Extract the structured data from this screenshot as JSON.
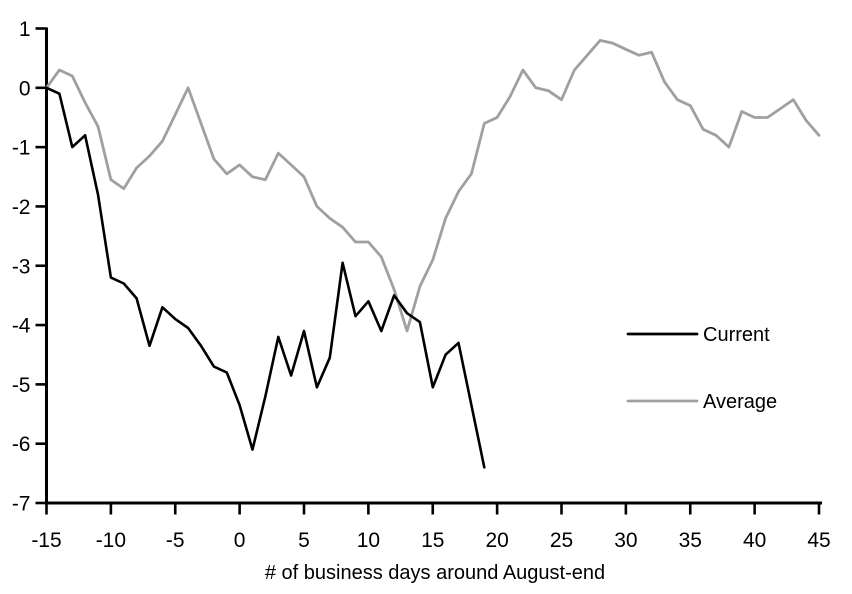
{
  "chart_data": {
    "type": "line",
    "title": "",
    "xlabel": "# of business days around August-end",
    "ylabel": "",
    "xlim": [
      -15,
      45
    ],
    "ylim": [
      -7,
      1
    ],
    "x_ticks": [
      -15,
      -10,
      -5,
      0,
      5,
      10,
      15,
      20,
      25,
      30,
      35,
      40,
      45
    ],
    "y_ticks": [
      1,
      0,
      -1,
      -2,
      -3,
      -4,
      -5,
      -6,
      -7
    ],
    "grid": false,
    "legend_position": "right-middle",
    "axis_color": "#000000",
    "series": [
      {
        "name": "Current",
        "color": "#000000",
        "width": 2.6,
        "x": [
          -15,
          -14,
          -13,
          -12,
          -11,
          -10,
          -9,
          -8,
          -7,
          -6,
          -5,
          -4,
          -3,
          -2,
          -1,
          0,
          1,
          2,
          3,
          4,
          5,
          6,
          7,
          8,
          9,
          10,
          11,
          12,
          13,
          14,
          15,
          16,
          17,
          18,
          19
        ],
        "values": [
          0,
          -0.1,
          -1.0,
          -0.8,
          -1.8,
          -3.2,
          -3.3,
          -3.55,
          -4.35,
          -3.7,
          -3.9,
          -4.05,
          -4.35,
          -4.7,
          -4.8,
          -5.35,
          -6.1,
          -5.2,
          -4.2,
          -4.85,
          -4.1,
          -5.05,
          -4.55,
          -2.95,
          -3.85,
          -3.6,
          -4.1,
          -3.5,
          -3.8,
          -3.95,
          -5.05,
          -4.5,
          -4.3,
          -5.35,
          -6.4
        ]
      },
      {
        "name": "Average",
        "color": "#a0a0a0",
        "width": 2.8,
        "x": [
          -15,
          -14,
          -13,
          -12,
          -11,
          -10,
          -9,
          -8,
          -7,
          -6,
          -5,
          -4,
          -3,
          -2,
          -1,
          0,
          1,
          2,
          3,
          4,
          5,
          6,
          7,
          8,
          9,
          10,
          11,
          12,
          13,
          14,
          15,
          16,
          17,
          18,
          19,
          20,
          21,
          22,
          23,
          24,
          25,
          26,
          27,
          28,
          29,
          30,
          31,
          32,
          33,
          34,
          35,
          36,
          37,
          38,
          39,
          40,
          41,
          42,
          43,
          44,
          45
        ],
        "values": [
          0,
          0.3,
          0.2,
          -0.25,
          -0.65,
          -1.55,
          -1.7,
          -1.35,
          -1.15,
          -0.9,
          -0.45,
          0.0,
          -0.6,
          -1.2,
          -1.45,
          -1.3,
          -1.5,
          -1.55,
          -1.1,
          -1.3,
          -1.5,
          -2.0,
          -2.2,
          -2.35,
          -2.6,
          -2.6,
          -2.85,
          -3.4,
          -4.1,
          -3.35,
          -2.9,
          -2.2,
          -1.75,
          -1.45,
          -0.6,
          -0.5,
          -0.15,
          0.3,
          0.0,
          -0.05,
          -0.2,
          0.3,
          0.55,
          0.8,
          0.75,
          0.65,
          0.55,
          0.6,
          0.1,
          -0.2,
          -0.3,
          -0.7,
          -0.8,
          -1.0,
          -0.4,
          -0.5,
          -0.5,
          -0.35,
          -0.2,
          -0.55,
          -0.8
        ]
      }
    ],
    "legend": {
      "items": [
        {
          "label": "Current"
        },
        {
          "label": "Average"
        }
      ]
    }
  }
}
